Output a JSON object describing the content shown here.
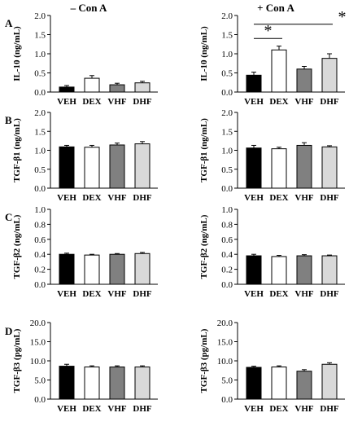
{
  "figure": {
    "column_headers": [
      "– Con A",
      "+ Con A"
    ],
    "row_letters": [
      "A",
      "B",
      "C",
      "D"
    ]
  },
  "chart_data": [
    {
      "panel": "A-left",
      "type": "bar",
      "categories": [
        "VEH",
        "DEX",
        "VHF",
        "DHF"
      ],
      "values": [
        0.13,
        0.36,
        0.19,
        0.24
      ],
      "errors": [
        0.04,
        0.07,
        0.04,
        0.04
      ],
      "ylabel": "IL-10 (ng/mL)",
      "ylim": [
        0,
        2.0
      ],
      "yticks": [
        "0.0",
        "0.5",
        "1.0",
        "1.5",
        "2.0"
      ],
      "fills": [
        "#000000",
        "#ffffff",
        "#808080",
        "#d9d9d9"
      ],
      "annotations": []
    },
    {
      "panel": "A-right",
      "type": "bar",
      "categories": [
        "VEH",
        "DEX",
        "VHF",
        "DHF"
      ],
      "values": [
        0.44,
        1.1,
        0.6,
        0.88
      ],
      "errors": [
        0.08,
        0.1,
        0.07,
        0.12
      ],
      "ylabel": "IL-10 (ng/mL)",
      "ylim": [
        0,
        2.0
      ],
      "yticks": [
        "0.0",
        "0.5",
        "1.0",
        "1.5",
        "2.0"
      ],
      "fills": [
        "#000000",
        "#ffffff",
        "#808080",
        "#d9d9d9"
      ],
      "annotations": [
        {
          "from": 0,
          "to": 1,
          "value": 1.4,
          "label": "*"
        },
        {
          "from": 0,
          "to": 3,
          "value": 1.77,
          "label": "*"
        }
      ]
    },
    {
      "panel": "B-left",
      "type": "bar",
      "categories": [
        "VEH",
        "DEX",
        "VHF",
        "DHF"
      ],
      "values": [
        1.09,
        1.08,
        1.14,
        1.17
      ],
      "errors": [
        0.04,
        0.05,
        0.05,
        0.06
      ],
      "ylabel": "TGF-β1 (ng/mL)",
      "ylim": [
        0,
        2.0
      ],
      "yticks": [
        "0.0",
        "0.5",
        "1.0",
        "1.5",
        "2.0"
      ],
      "fills": [
        "#000000",
        "#ffffff",
        "#808080",
        "#d9d9d9"
      ],
      "annotations": []
    },
    {
      "panel": "B-right",
      "type": "bar",
      "categories": [
        "VEH",
        "DEX",
        "VHF",
        "DHF"
      ],
      "values": [
        1.06,
        1.04,
        1.13,
        1.09
      ],
      "errors": [
        0.07,
        0.04,
        0.07,
        0.03
      ],
      "ylabel": "TGF-β1 (ng/mL)",
      "ylim": [
        0,
        2.0
      ],
      "yticks": [
        "0.0",
        "0.5",
        "1.0",
        "1.5",
        "2.0"
      ],
      "fills": [
        "#000000",
        "#ffffff",
        "#808080",
        "#d9d9d9"
      ],
      "annotations": []
    },
    {
      "panel": "C-left",
      "type": "bar",
      "categories": [
        "VEH",
        "DEX",
        "VHF",
        "DHF"
      ],
      "values": [
        0.4,
        0.39,
        0.4,
        0.41
      ],
      "errors": [
        0.015,
        0.01,
        0.01,
        0.015
      ],
      "ylabel": "TGF-β2 (ng/mL)",
      "ylim": [
        0,
        1.0
      ],
      "yticks": [
        "0.0",
        "0.2",
        "0.4",
        "0.6",
        "0.8",
        "1.0"
      ],
      "fills": [
        "#000000",
        "#ffffff",
        "#808080",
        "#d9d9d9"
      ],
      "annotations": []
    },
    {
      "panel": "C-right",
      "type": "bar",
      "categories": [
        "VEH",
        "DEX",
        "VHF",
        "DHF"
      ],
      "values": [
        0.38,
        0.37,
        0.38,
        0.38
      ],
      "errors": [
        0.02,
        0.015,
        0.015,
        0.01
      ],
      "ylabel": "TGF-β2 (ng/mL)",
      "ylim": [
        0,
        1.0
      ],
      "yticks": [
        "0.0",
        "0.2",
        "0.4",
        "0.6",
        "0.8",
        "1.0"
      ],
      "fills": [
        "#000000",
        "#ffffff",
        "#808080",
        "#d9d9d9"
      ],
      "annotations": []
    },
    {
      "panel": "D-left",
      "type": "bar",
      "categories": [
        "VEH",
        "DEX",
        "VHF",
        "DHF"
      ],
      "values": [
        8.6,
        8.4,
        8.4,
        8.4
      ],
      "errors": [
        0.5,
        0.3,
        0.3,
        0.3
      ],
      "ylabel": "TGF-β3 (pg/mL)",
      "ylim": [
        0,
        20.0
      ],
      "yticks": [
        "0.0",
        "5.0",
        "10.0",
        "15.0",
        "20.0"
      ],
      "fills": [
        "#000000",
        "#ffffff",
        "#808080",
        "#d9d9d9"
      ],
      "annotations": []
    },
    {
      "panel": "D-right",
      "type": "bar",
      "categories": [
        "VEH",
        "DEX",
        "VHF",
        "DHF"
      ],
      "values": [
        8.3,
        8.4,
        7.3,
        9.1
      ],
      "errors": [
        0.3,
        0.3,
        0.4,
        0.4
      ],
      "ylabel": "TGF-β3 (pg/mL)",
      "ylim": [
        0,
        20.0
      ],
      "yticks": [
        "0.0",
        "5.0",
        "10.0",
        "15.0",
        "20.0"
      ],
      "fills": [
        "#000000",
        "#ffffff",
        "#808080",
        "#d9d9d9"
      ],
      "annotations": []
    }
  ]
}
